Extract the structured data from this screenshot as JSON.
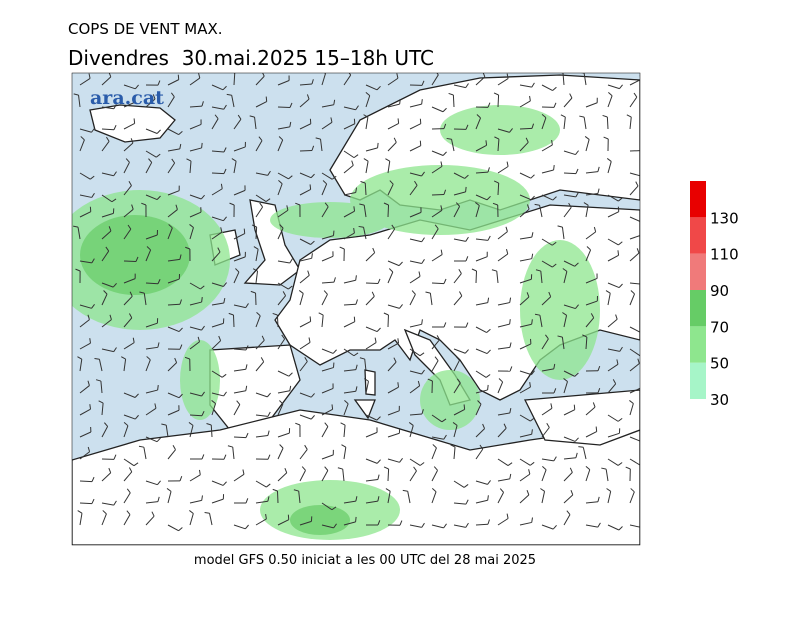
{
  "header": {
    "title": "COPS DE VENT MAX.",
    "subtitle": "Divendres  30.mai.2025 15–18h UTC"
  },
  "logo": "ara.cat",
  "footer": "model GFS 0.50 iniciat a les 00 UTC del 28 mai 2025",
  "colorbar": {
    "lim": [
      30,
      150
    ],
    "ticks": [
      30,
      50,
      70,
      90,
      110,
      130
    ],
    "colors": [
      "#a6f5c8",
      "#8ee68e",
      "#66cc66",
      "#f07a7a",
      "#f04848",
      "#e80000"
    ]
  }
}
